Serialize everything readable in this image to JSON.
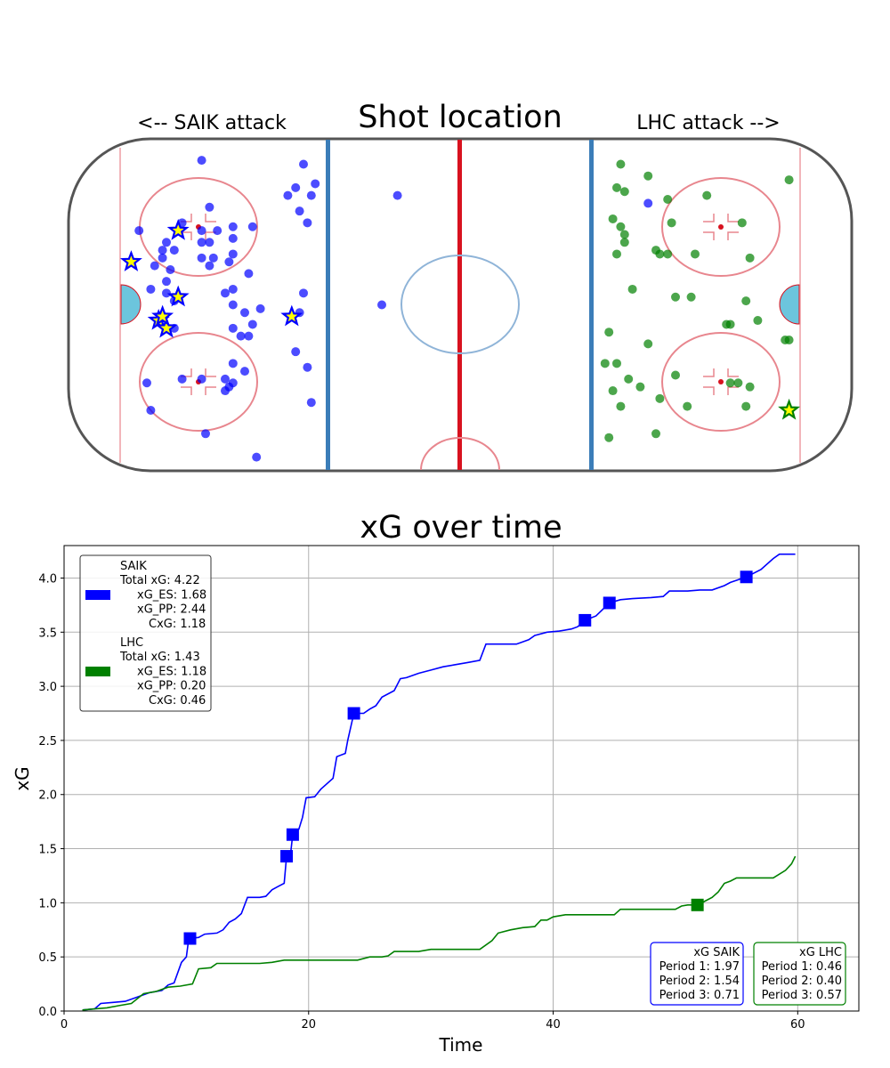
{
  "rink": {
    "title": "Shot location",
    "left_label": "<-- SAIK attack",
    "right_label": "LHC attack -->",
    "colors": {
      "saik": "#0000ff",
      "lhc": "#008000",
      "goal_marker_fill": "#ffff00",
      "crease": "#6cc5dd",
      "red_line": "#d8121f",
      "blue_line": "#3b7db8",
      "circles": "#e8868e"
    },
    "x_range": [
      -100,
      100
    ],
    "y_range": [
      -42.5,
      42.5
    ],
    "saik_shots": [
      [
        -66,
        37
      ],
      [
        -40,
        36
      ],
      [
        -42,
        30
      ],
      [
        -44,
        28
      ],
      [
        -37,
        31
      ],
      [
        -38,
        28
      ],
      [
        -64,
        25
      ],
      [
        -71,
        21
      ],
      [
        -82,
        19
      ],
      [
        -73,
        14
      ],
      [
        -66,
        19
      ],
      [
        -62,
        19
      ],
      [
        -58,
        20
      ],
      [
        -58,
        17
      ],
      [
        -66,
        16
      ],
      [
        -64,
        16
      ],
      [
        -58,
        13
      ],
      [
        -64,
        10
      ],
      [
        -59,
        11
      ],
      [
        -53,
        20
      ],
      [
        -75,
        16
      ],
      [
        -76,
        14
      ],
      [
        -76,
        12
      ],
      [
        -78,
        10
      ],
      [
        -74,
        9
      ],
      [
        -66,
        12
      ],
      [
        -63,
        12
      ],
      [
        -54,
        8
      ],
      [
        -75,
        6
      ],
      [
        -79,
        4
      ],
      [
        -75,
        3
      ],
      [
        -73,
        1
      ],
      [
        -60,
        3
      ],
      [
        -58,
        4
      ],
      [
        -40,
        3
      ],
      [
        -41,
        24
      ],
      [
        -39,
        21
      ],
      [
        -58,
        0
      ],
      [
        -55,
        -2
      ],
      [
        -51,
        -1
      ],
      [
        -41,
        -2
      ],
      [
        -58,
        -6
      ],
      [
        -53,
        -5
      ],
      [
        -73,
        -6
      ],
      [
        -54,
        -8
      ],
      [
        -56,
        -8
      ],
      [
        -42,
        -12
      ],
      [
        -58,
        -15
      ],
      [
        -55,
        -17
      ],
      [
        -39,
        -16
      ],
      [
        -80,
        -20
      ],
      [
        -71,
        -19
      ],
      [
        -66,
        -19
      ],
      [
        -60,
        -19
      ],
      [
        -58,
        -20
      ],
      [
        -60,
        -22
      ],
      [
        -59,
        -21
      ],
      [
        -38,
        -25
      ],
      [
        -79,
        -27
      ],
      [
        -65,
        -33
      ],
      [
        -52,
        -39
      ],
      [
        -16,
        28
      ],
      [
        -20,
        0
      ],
      [
        48,
        26
      ]
    ],
    "saik_goals": [
      [
        -72,
        19
      ],
      [
        -84,
        11
      ],
      [
        -72,
        2
      ],
      [
        -77,
        -4
      ],
      [
        -75,
        -6
      ],
      [
        -76,
        -3
      ],
      [
        -43,
        -3
      ]
    ],
    "lhc_shots": [
      [
        41,
        36
      ],
      [
        48,
        33
      ],
      [
        40,
        30
      ],
      [
        42,
        29
      ],
      [
        53,
        27
      ],
      [
        63,
        28
      ],
      [
        84,
        32
      ],
      [
        39,
        22
      ],
      [
        41,
        20
      ],
      [
        42,
        18
      ],
      [
        54,
        21
      ],
      [
        72,
        21
      ],
      [
        42,
        16
      ],
      [
        40,
        13
      ],
      [
        50,
        14
      ],
      [
        53,
        13
      ],
      [
        51,
        13
      ],
      [
        60,
        13
      ],
      [
        74,
        12
      ],
      [
        44,
        4
      ],
      [
        55,
        2
      ],
      [
        59,
        2
      ],
      [
        73,
        1
      ],
      [
        68,
        -5
      ],
      [
        69,
        -5
      ],
      [
        38,
        -7
      ],
      [
        76,
        -4
      ],
      [
        83,
        -9
      ],
      [
        48,
        -10
      ],
      [
        37,
        -15
      ],
      [
        40,
        -15
      ],
      [
        43,
        -19
      ],
      [
        55,
        -18
      ],
      [
        69,
        -20
      ],
      [
        71,
        -20
      ],
      [
        46,
        -21
      ],
      [
        39,
        -22
      ],
      [
        51,
        -24
      ],
      [
        74,
        -21
      ],
      [
        41,
        -26
      ],
      [
        58,
        -26
      ],
      [
        73,
        -26
      ],
      [
        50,
        -33
      ],
      [
        38,
        -34
      ],
      [
        84,
        -9
      ]
    ],
    "lhc_goals": [
      [
        84,
        -27
      ]
    ]
  },
  "chart_data": {
    "type": "line",
    "title": "xG over time",
    "xlabel": "Time",
    "ylabel": "xG",
    "xlim": [
      0,
      65
    ],
    "ylim": [
      0,
      4.3
    ],
    "xticks": [
      "0",
      "20",
      "40",
      "60"
    ],
    "yticks": [
      "0.0",
      "0.5",
      "1.0",
      "1.5",
      "2.0",
      "2.5",
      "3.0",
      "3.5",
      "4.0"
    ],
    "grid": true,
    "series": [
      {
        "name": "SAIK",
        "color": "#0000ff",
        "points": [
          [
            1.5,
            0.01
          ],
          [
            2.5,
            0.02
          ],
          [
            3,
            0.07
          ],
          [
            4,
            0.08
          ],
          [
            5,
            0.09
          ],
          [
            6,
            0.13
          ],
          [
            7,
            0.17
          ],
          [
            8,
            0.19
          ],
          [
            8.5,
            0.24
          ],
          [
            9,
            0.26
          ],
          [
            9.6,
            0.45
          ],
          [
            10,
            0.5
          ],
          [
            10.2,
            0.67
          ],
          [
            11,
            0.68
          ],
          [
            11.5,
            0.71
          ],
          [
            12.5,
            0.72
          ],
          [
            13,
            0.75
          ],
          [
            13.5,
            0.82
          ],
          [
            14,
            0.85
          ],
          [
            14.5,
            0.9
          ],
          [
            15,
            1.05
          ],
          [
            16,
            1.05
          ],
          [
            16.5,
            1.06
          ],
          [
            17,
            1.12
          ],
          [
            17.5,
            1.15
          ],
          [
            18,
            1.18
          ],
          [
            18.2,
            1.43
          ],
          [
            18.5,
            1.43
          ],
          [
            18.7,
            1.63
          ],
          [
            19.2,
            1.68
          ],
          [
            19.5,
            1.79
          ],
          [
            19.8,
            1.97
          ],
          [
            20.5,
            1.98
          ],
          [
            21,
            2.05
          ],
          [
            22,
            2.15
          ],
          [
            22.3,
            2.35
          ],
          [
            23,
            2.38
          ],
          [
            23.2,
            2.5
          ],
          [
            23.7,
            2.75
          ],
          [
            24.5,
            2.75
          ],
          [
            25,
            2.79
          ],
          [
            25.5,
            2.82
          ],
          [
            26,
            2.9
          ],
          [
            27,
            2.96
          ],
          [
            27.5,
            3.07
          ],
          [
            28,
            3.08
          ],
          [
            29,
            3.12
          ],
          [
            30,
            3.15
          ],
          [
            31,
            3.18
          ],
          [
            32,
            3.2
          ],
          [
            33,
            3.22
          ],
          [
            34,
            3.24
          ],
          [
            34.5,
            3.39
          ],
          [
            35.5,
            3.39
          ],
          [
            37,
            3.39
          ],
          [
            38,
            3.43
          ],
          [
            38.5,
            3.47
          ],
          [
            39.5,
            3.5
          ],
          [
            40.5,
            3.51
          ],
          [
            41.5,
            3.53
          ],
          [
            42,
            3.55
          ],
          [
            42.6,
            3.61
          ],
          [
            43.5,
            3.65
          ],
          [
            44.6,
            3.77
          ],
          [
            45.5,
            3.8
          ],
          [
            46.5,
            3.81
          ],
          [
            48,
            3.82
          ],
          [
            49,
            3.83
          ],
          [
            49.5,
            3.88
          ],
          [
            51,
            3.88
          ],
          [
            52,
            3.89
          ],
          [
            53,
            3.89
          ],
          [
            54,
            3.93
          ],
          [
            54.5,
            3.96
          ],
          [
            55.8,
            4.01
          ],
          [
            57,
            4.08
          ],
          [
            58,
            4.18
          ],
          [
            58.5,
            4.22
          ],
          [
            59.8,
            4.22
          ]
        ]
      },
      {
        "name": "LHC",
        "color": "#008000",
        "points": [
          [
            1.5,
            0.01
          ],
          [
            2.5,
            0.02
          ],
          [
            3.5,
            0.03
          ],
          [
            4.5,
            0.05
          ],
          [
            5.5,
            0.07
          ],
          [
            6.5,
            0.16
          ],
          [
            7.5,
            0.18
          ],
          [
            8.5,
            0.22
          ],
          [
            9.5,
            0.23
          ],
          [
            10.5,
            0.25
          ],
          [
            11,
            0.39
          ],
          [
            12,
            0.4
          ],
          [
            12.5,
            0.44
          ],
          [
            14,
            0.44
          ],
          [
            16,
            0.44
          ],
          [
            17,
            0.45
          ],
          [
            18,
            0.47
          ],
          [
            20,
            0.47
          ],
          [
            22,
            0.47
          ],
          [
            24,
            0.47
          ],
          [
            25,
            0.5
          ],
          [
            26,
            0.5
          ],
          [
            26.5,
            0.51
          ],
          [
            27,
            0.55
          ],
          [
            29,
            0.55
          ],
          [
            30,
            0.57
          ],
          [
            32,
            0.57
          ],
          [
            34,
            0.57
          ],
          [
            35,
            0.65
          ],
          [
            35.5,
            0.72
          ],
          [
            36.5,
            0.75
          ],
          [
            37.5,
            0.77
          ],
          [
            38.5,
            0.78
          ],
          [
            39,
            0.84
          ],
          [
            39.5,
            0.84
          ],
          [
            40,
            0.87
          ],
          [
            41,
            0.89
          ],
          [
            42,
            0.89
          ],
          [
            43,
            0.89
          ],
          [
            44,
            0.89
          ],
          [
            45,
            0.89
          ],
          [
            45.5,
            0.94
          ],
          [
            47,
            0.94
          ],
          [
            48,
            0.94
          ],
          [
            49,
            0.94
          ],
          [
            50,
            0.94
          ],
          [
            50.5,
            0.97
          ],
          [
            51,
            0.98
          ],
          [
            51.8,
            0.98
          ],
          [
            52.5,
            1.02
          ],
          [
            53,
            1.05
          ],
          [
            53.5,
            1.1
          ],
          [
            54,
            1.18
          ],
          [
            54.5,
            1.2
          ],
          [
            55,
            1.23
          ],
          [
            56,
            1.23
          ],
          [
            57,
            1.23
          ],
          [
            58,
            1.23
          ],
          [
            59,
            1.3
          ],
          [
            59.5,
            1.36
          ],
          [
            59.8,
            1.43
          ]
        ]
      }
    ],
    "goals": [
      {
        "team": "SAIK",
        "points": [
          [
            10.3,
            0.67
          ],
          [
            18.2,
            1.43
          ],
          [
            18.7,
            1.63
          ],
          [
            23.7,
            2.75
          ],
          [
            42.6,
            3.61
          ],
          [
            44.6,
            3.77
          ],
          [
            55.8,
            4.01
          ]
        ]
      },
      {
        "team": "LHC",
        "points": [
          [
            51.8,
            0.98
          ]
        ]
      }
    ],
    "legend": {
      "placement": "upper left",
      "entries": [
        {
          "color": "#0000ff",
          "lines": [
            "SAIK",
            "Total xG: 4.22",
            "xG_ES: 1.68",
            "xG_PP: 2.44",
            "CxG: 1.18"
          ]
        },
        {
          "color": "#008000",
          "lines": [
            "LHC",
            "Total xG: 1.43",
            "xG_ES: 1.18",
            "xG_PP: 0.20",
            "CxG: 0.46"
          ]
        }
      ]
    },
    "period_boxes": [
      {
        "color": "#0000ff",
        "lines": [
          "xG SAIK",
          "Period 1: 1.97",
          "Period 2: 1.54",
          "Period 3: 0.71"
        ]
      },
      {
        "color": "#008000",
        "lines": [
          "xG LHC",
          "Period 1: 0.46",
          "Period 2: 0.40",
          "Period 3: 0.57"
        ]
      }
    ]
  }
}
